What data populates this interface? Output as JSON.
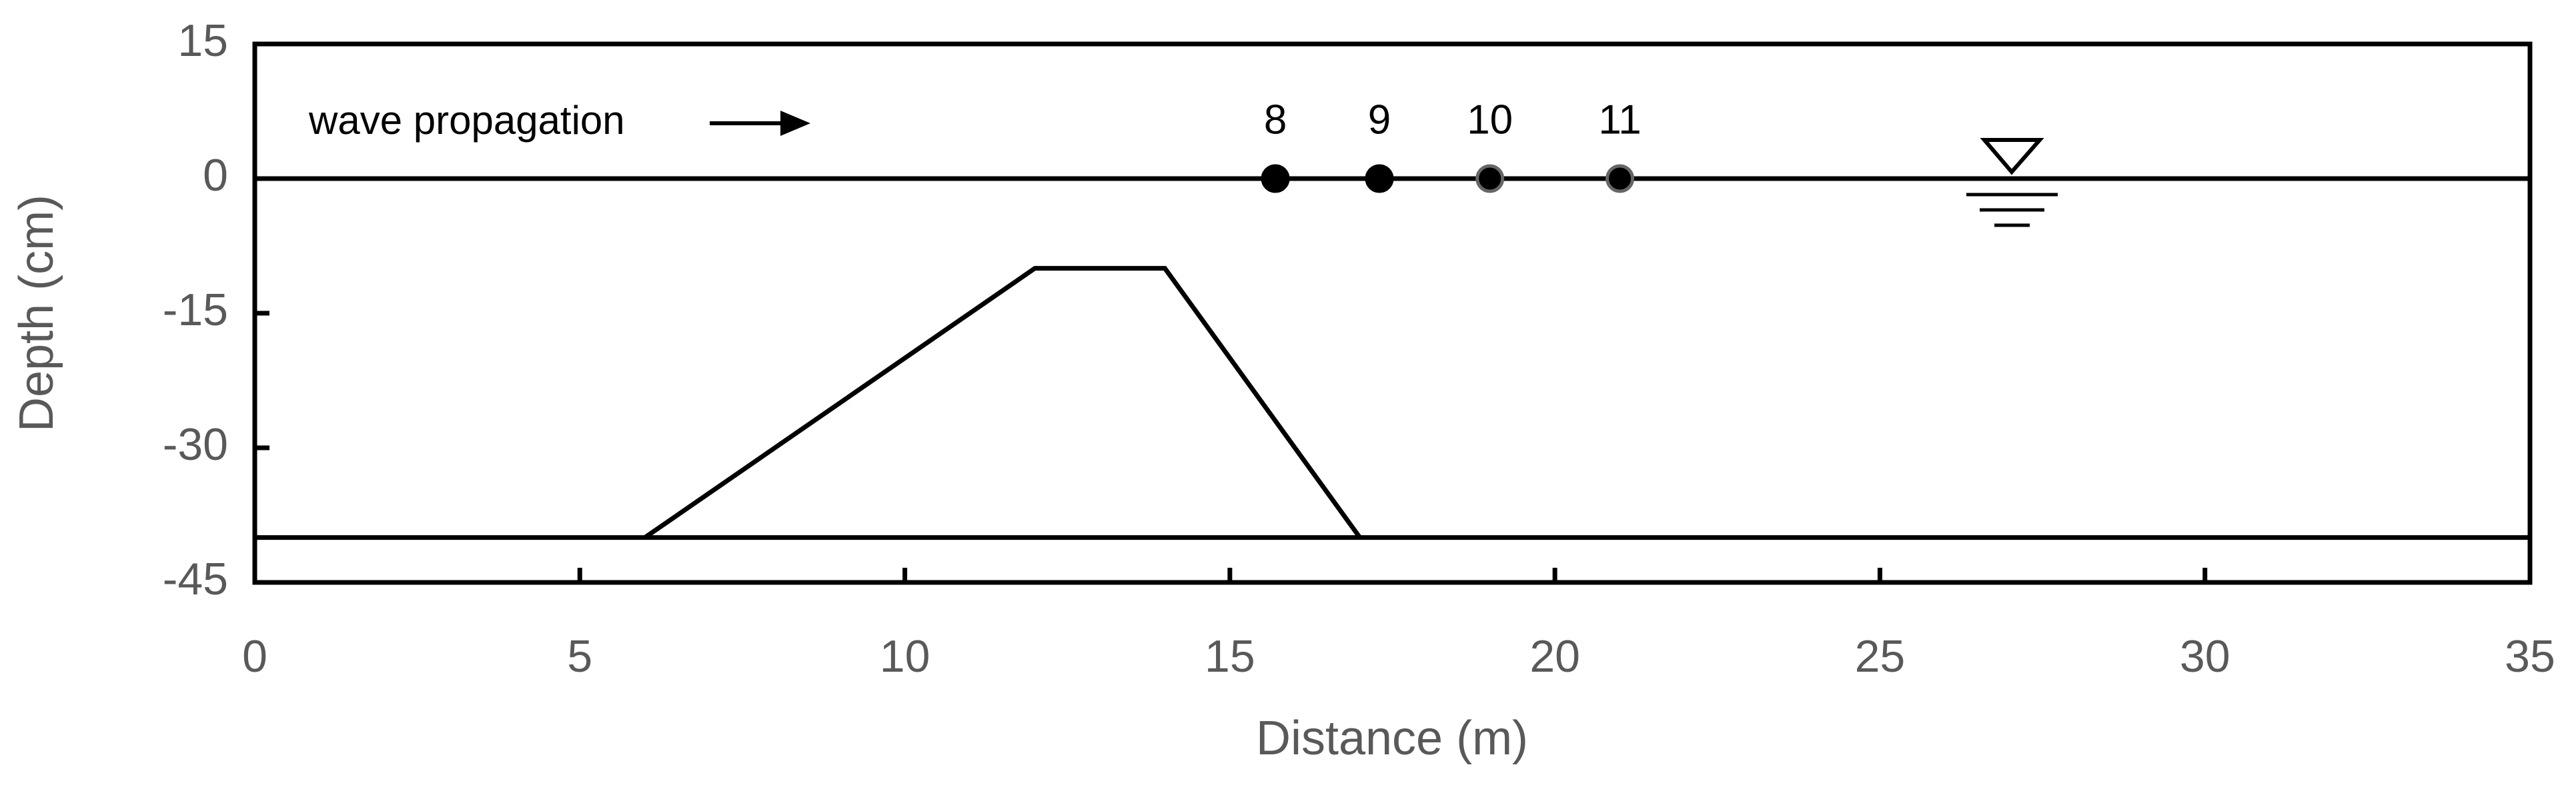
{
  "chart_data": {
    "type": "line",
    "xlabel": "Distance (m)",
    "ylabel": "Depth (cm)",
    "annotation": "wave propagation",
    "xlim": [
      0,
      35
    ],
    "xticks": [
      0,
      5,
      10,
      15,
      20,
      25,
      30,
      35
    ],
    "ylim": [
      -45,
      15
    ],
    "yticks": [
      15,
      0,
      -15,
      -30,
      -45
    ],
    "series": [
      {
        "mode": "line",
        "color": "#000000",
        "x": [
          0,
          35
        ],
        "values": [
          0,
          0
        ]
      },
      {
        "mode": "line",
        "color": "#000000",
        "x": [
          0,
          35
        ],
        "values": [
          -40,
          -40
        ]
      },
      {
        "mode": "line",
        "color": "#000000",
        "x": [
          6,
          12,
          14,
          17
        ],
        "values": [
          -40,
          -10,
          -10,
          -40
        ]
      },
      {
        "mode": "markers",
        "color": "#000000",
        "x": [
          15.7,
          17.3,
          19,
          21
        ],
        "values": [
          0,
          0,
          0,
          0
        ],
        "point_labels": [
          8,
          9,
          10,
          11
        ],
        "edge_colors": [
          "#000000",
          "#000000",
          "#666666",
          "#666666"
        ]
      }
    ]
  }
}
